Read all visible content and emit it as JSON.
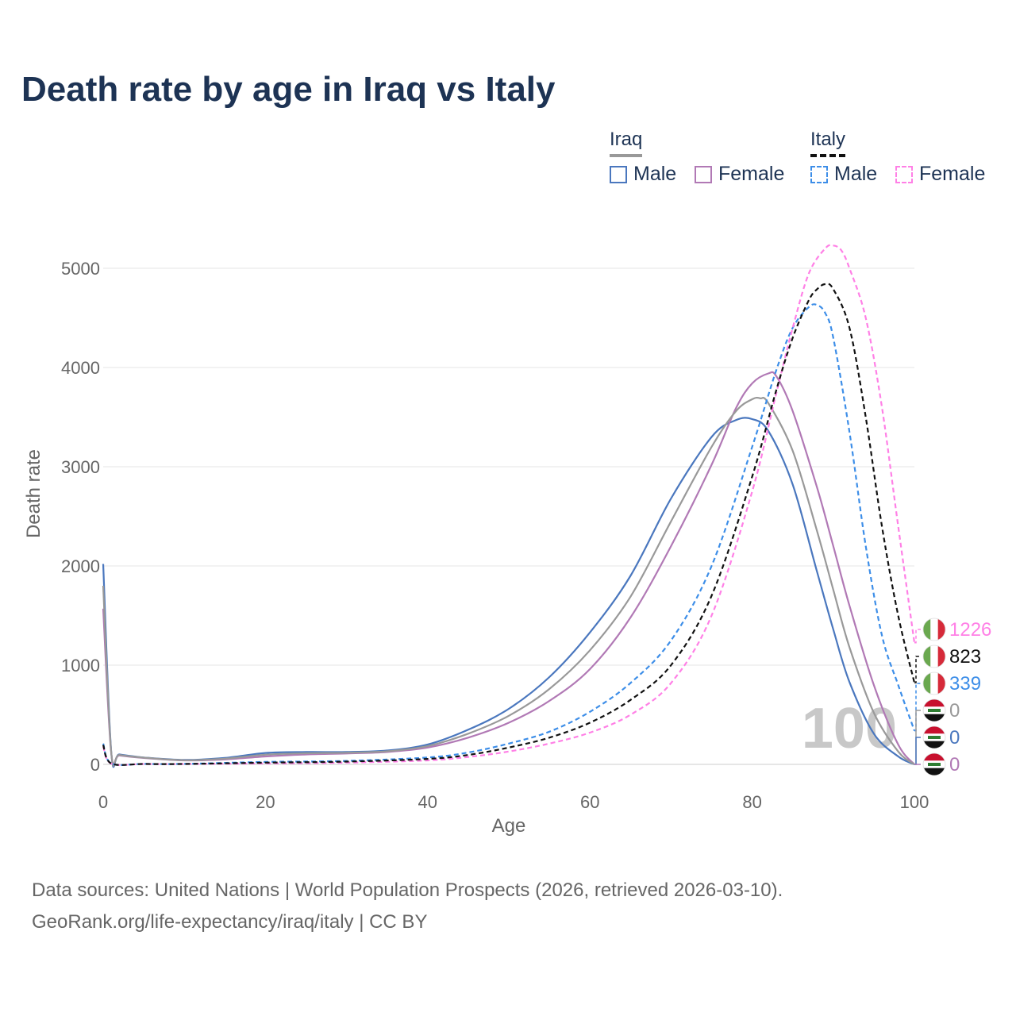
{
  "title": "Death rate by age in Iraq vs Italy",
  "legend": {
    "groups": [
      {
        "name": "Iraq",
        "line_color": "#999999",
        "line_style": "solid",
        "items": [
          {
            "label": "Male",
            "color": "#4a77be",
            "style": "solid"
          },
          {
            "label": "Female",
            "color": "#b179b5",
            "style": "solid"
          }
        ]
      },
      {
        "name": "Italy",
        "line_color": "#111111",
        "line_style": "dashed",
        "items": [
          {
            "label": "Male",
            "color": "#3d8ee8",
            "style": "dashed"
          },
          {
            "label": "Female",
            "color": "#ff80e6",
            "style": "dashed"
          }
        ]
      }
    ]
  },
  "source": {
    "line1": "Data sources: United Nations | World Population Prospects (2026, retrieved 2026-03-10).",
    "line2": "GeoRank.org/life-expectancy/iraq/italy | CC BY"
  },
  "chart_data": {
    "type": "line",
    "title": "Death rate by age in Iraq vs Italy",
    "xlabel": "Age",
    "ylabel": "Death rate",
    "xlim": [
      0,
      100
    ],
    "ylim": [
      0,
      5300
    ],
    "x_ticks": [
      0,
      20,
      40,
      60,
      80,
      100
    ],
    "y_ticks": [
      0,
      1000,
      2000,
      3000,
      4000,
      5000
    ],
    "grid": true,
    "current_age_watermark": "100",
    "series": [
      {
        "name": "Iraq Male",
        "color": "#4a77be",
        "dash": false,
        "end_label": "0",
        "x": [
          0,
          1,
          2,
          5,
          10,
          15,
          20,
          25,
          30,
          35,
          40,
          45,
          50,
          55,
          60,
          65,
          70,
          75,
          78,
          80,
          82,
          85,
          88,
          90,
          92,
          95,
          98,
          100
        ],
        "y": [
          2020,
          120,
          100,
          70,
          45,
          65,
          115,
          125,
          125,
          140,
          200,
          350,
          560,
          880,
          1330,
          1900,
          2680,
          3300,
          3470,
          3480,
          3360,
          2820,
          1940,
          1360,
          830,
          310,
          80,
          0
        ]
      },
      {
        "name": "Iraq Female",
        "color": "#b179b5",
        "dash": false,
        "end_label": "0",
        "x": [
          0,
          1,
          2,
          5,
          10,
          15,
          20,
          25,
          30,
          35,
          40,
          45,
          50,
          55,
          60,
          65,
          70,
          75,
          78,
          80,
          82,
          83,
          85,
          88,
          90,
          92,
          95,
          98,
          100
        ],
        "y": [
          1570,
          110,
          90,
          65,
          40,
          50,
          80,
          100,
          110,
          125,
          170,
          270,
          420,
          640,
          960,
          1480,
          2200,
          3020,
          3590,
          3840,
          3940,
          3910,
          3560,
          2790,
          2200,
          1600,
          800,
          200,
          0
        ]
      },
      {
        "name": "Iraq Total",
        "color": "#999999",
        "dash": false,
        "end_label": "0",
        "x": [
          0,
          1,
          2,
          5,
          10,
          15,
          20,
          25,
          30,
          35,
          40,
          45,
          50,
          55,
          60,
          65,
          70,
          75,
          78,
          80,
          81,
          82,
          85,
          88,
          90,
          92,
          95,
          98,
          100
        ],
        "y": [
          1800,
          115,
          95,
          68,
          42,
          58,
          98,
          112,
          118,
          132,
          185,
          310,
          490,
          760,
          1150,
          1690,
          2450,
          3200,
          3560,
          3680,
          3690,
          3640,
          3160,
          2350,
          1760,
          1180,
          520,
          130,
          0
        ]
      },
      {
        "name": "Italy Male",
        "color": "#3d8ee8",
        "dash": true,
        "end_label": "339",
        "x": [
          0,
          1,
          5,
          10,
          20,
          30,
          40,
          45,
          50,
          55,
          60,
          65,
          70,
          75,
          80,
          83,
          85,
          87,
          88,
          89,
          90,
          92,
          94,
          96,
          98,
          100
        ],
        "y": [
          210,
          10,
          5,
          5,
          25,
          35,
          70,
          120,
          210,
          330,
          530,
          820,
          1250,
          2000,
          3200,
          3980,
          4400,
          4610,
          4630,
          4550,
          4300,
          3350,
          2200,
          1300,
          800,
          339
        ]
      },
      {
        "name": "Italy Female",
        "color": "#ff80e6",
        "dash": true,
        "end_label": "1226",
        "x": [
          0,
          1,
          5,
          10,
          20,
          30,
          40,
          45,
          50,
          55,
          60,
          65,
          70,
          75,
          80,
          83,
          85,
          87,
          89,
          90,
          91,
          92,
          94,
          96,
          98,
          100
        ],
        "y": [
          180,
          8,
          4,
          4,
          10,
          18,
          40,
          75,
          130,
          210,
          320,
          500,
          820,
          1500,
          2750,
          3750,
          4400,
          4950,
          5200,
          5230,
          5180,
          5000,
          4500,
          3600,
          2400,
          1226
        ]
      },
      {
        "name": "Italy Total",
        "color": "#111111",
        "dash": true,
        "end_label": "823",
        "x": [
          0,
          1,
          5,
          10,
          20,
          30,
          40,
          45,
          50,
          55,
          60,
          65,
          70,
          75,
          80,
          83,
          85,
          87,
          88,
          89,
          90,
          92,
          94,
          96,
          98,
          100
        ],
        "y": [
          195,
          9,
          4,
          4,
          18,
          28,
          55,
          95,
          170,
          270,
          420,
          650,
          1000,
          1700,
          2900,
          3780,
          4300,
          4680,
          4790,
          4840,
          4790,
          4400,
          3500,
          2400,
          1500,
          823
        ]
      }
    ]
  }
}
